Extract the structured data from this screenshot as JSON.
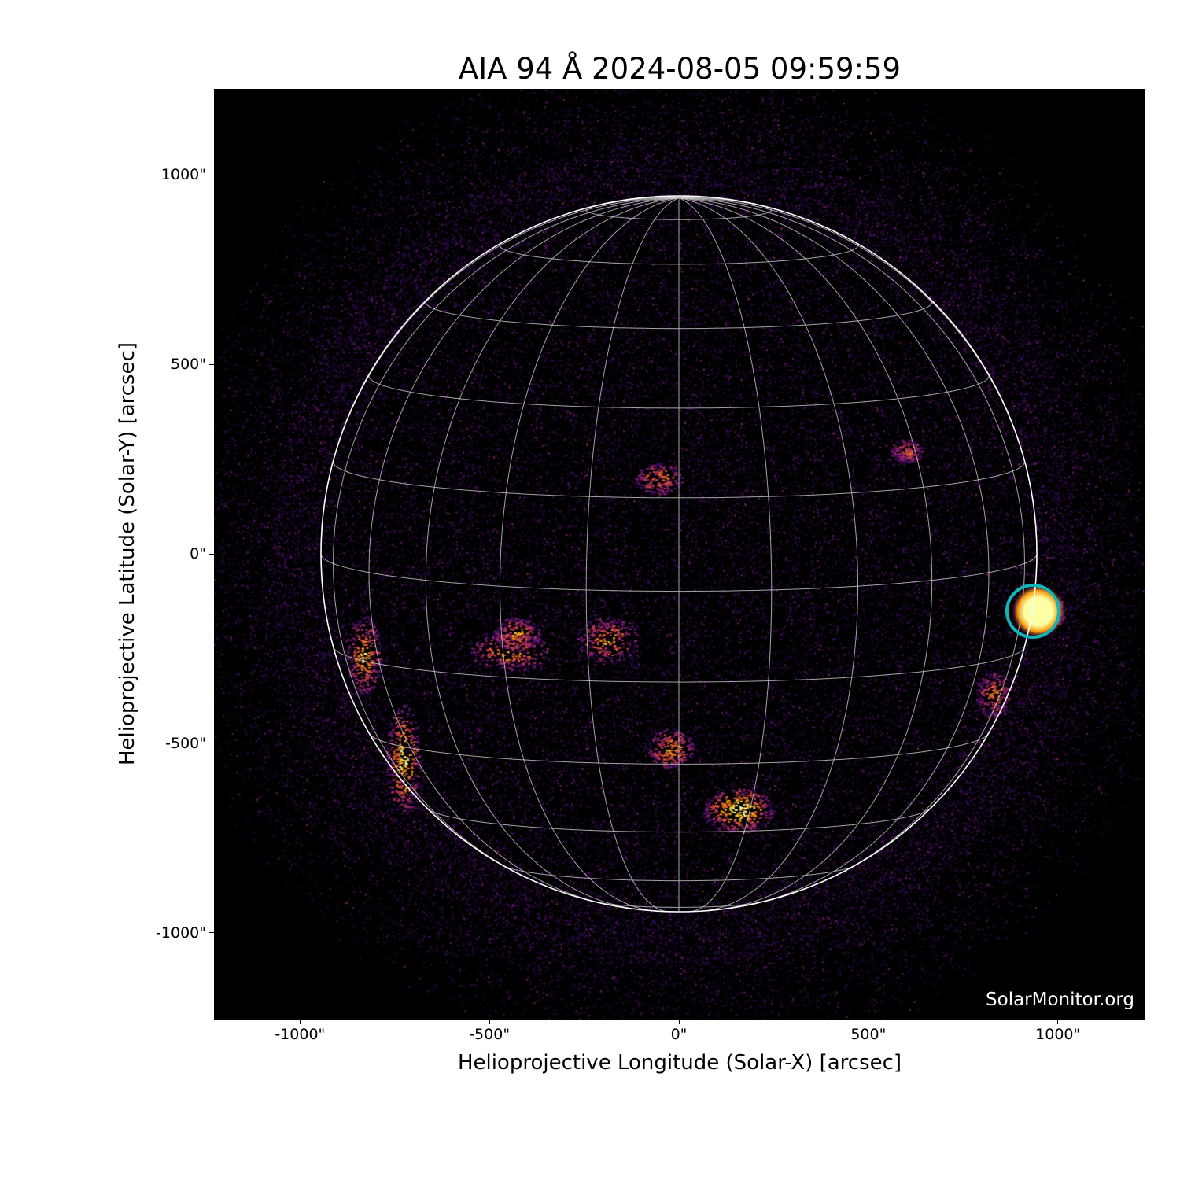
{
  "title": "AIA 94 Å 2024-08-05 09:59:59",
  "watermark": "SolarMonitor.org",
  "x_axis": {
    "label": "Helioprojective Longitude (Solar-X) [arcsec]",
    "ticks": [
      {
        "value": -1000,
        "label": "-1000\""
      },
      {
        "value": -500,
        "label": "-500\""
      },
      {
        "value": 0,
        "label": "0\""
      },
      {
        "value": 500,
        "label": "500\""
      },
      {
        "value": 1000,
        "label": "1000\""
      }
    ],
    "range": [
      -1230,
      1230
    ]
  },
  "y_axis": {
    "label": "Helioprojective Latitude (Solar-Y) [arcsec]",
    "ticks": [
      {
        "value": 1000,
        "label": "1000\""
      },
      {
        "value": 500,
        "label": "500\""
      },
      {
        "value": 0,
        "label": "0\""
      },
      {
        "value": -500,
        "label": "-500\""
      },
      {
        "value": -1000,
        "label": "-1000\""
      }
    ],
    "range": [
      -1230,
      1230
    ]
  },
  "colors": {
    "background": "#000000",
    "grid": "#cccccc",
    "limb": "#ffffff",
    "marker": "#12b5b5",
    "colormap": "inferno"
  }
}
